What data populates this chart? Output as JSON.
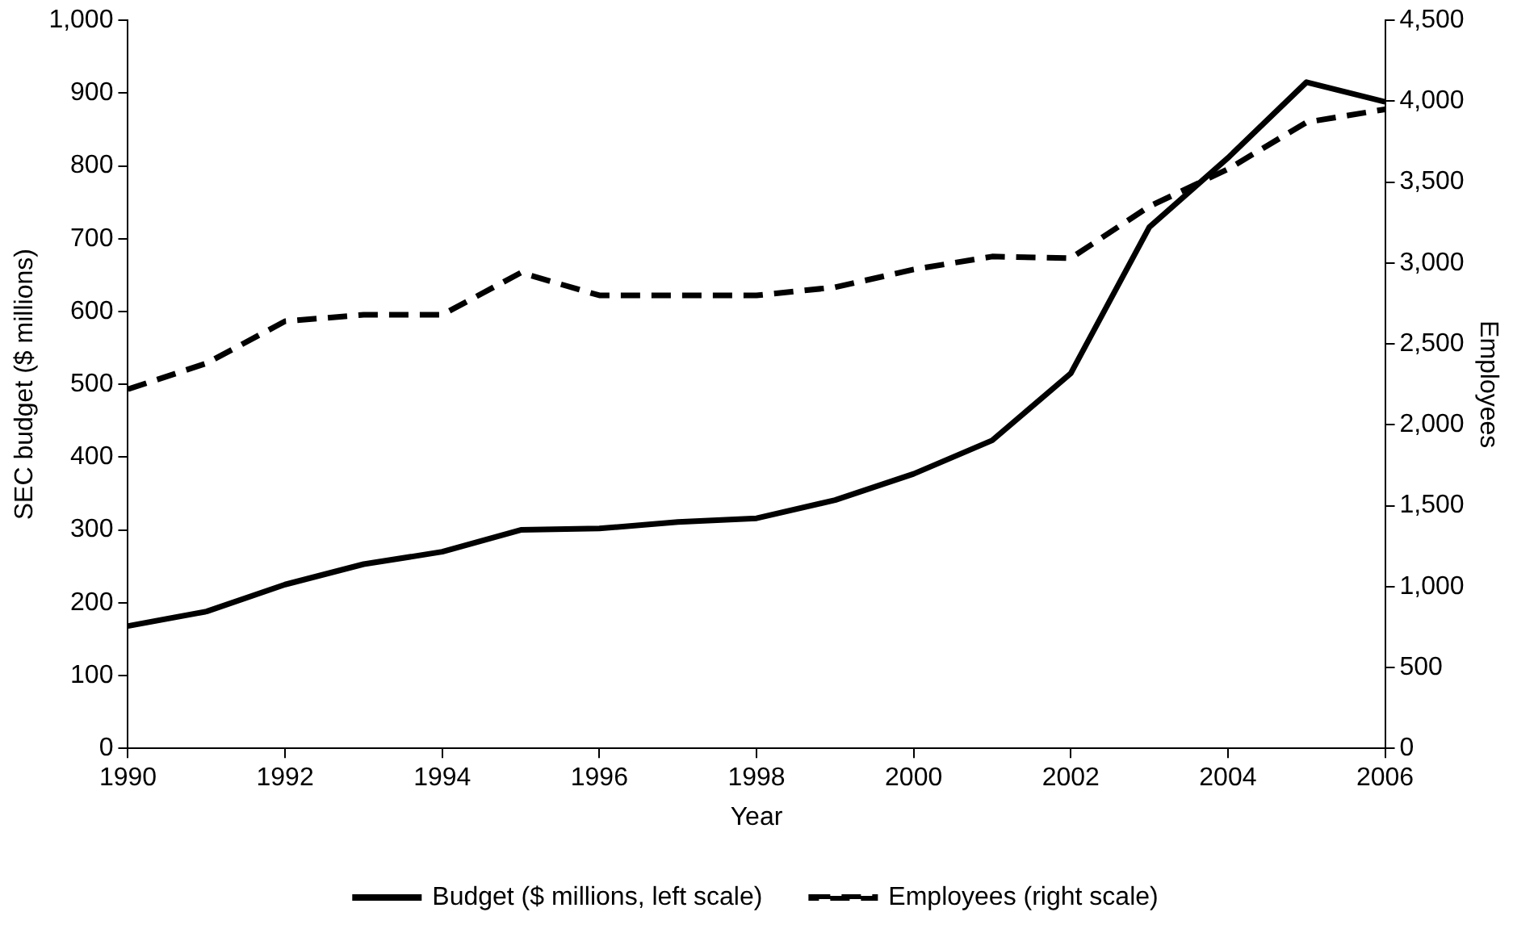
{
  "chart_data": {
    "type": "line",
    "xlabel": "Year",
    "ylabel": "SEC budget ($ millions)",
    "y2label": "Employees",
    "x": [
      1990,
      1991,
      1992,
      1993,
      1994,
      1995,
      1996,
      1997,
      1998,
      1999,
      2000,
      2001,
      2002,
      2003,
      2004,
      2005,
      2006
    ],
    "series": [
      {
        "name": "Budget ($ millions, left scale)",
        "color": "#000000",
        "line_style": "solid",
        "values": [
          168,
          188,
          225,
          253,
          270,
          300,
          302,
          311,
          316,
          341,
          377,
          423,
          515,
          716,
          811,
          915,
          888
        ]
      },
      {
        "name": "Employees (right scale)",
        "color": "#000000",
        "line_style": "dashed",
        "axis": "y2",
        "values": [
          2220,
          2380,
          2640,
          2680,
          2680,
          2940,
          2800,
          2800,
          2800,
          2850,
          2960,
          3040,
          3030,
          3350,
          3580,
          3870,
          3950
        ]
      }
    ],
    "xlim": [
      1990,
      2006
    ],
    "xticks": [
      1990,
      1992,
      1994,
      1996,
      1998,
      2000,
      2002,
      2004,
      2006
    ],
    "ylim": [
      0,
      1000
    ],
    "yticks": [
      0,
      {
        "value": 100,
        "label": "100"
      },
      200,
      300,
      400,
      500,
      600,
      700,
      800,
      900,
      {
        "value": 1000,
        "label": "1,000"
      }
    ],
    "y2lim": [
      0,
      4500
    ],
    "y2ticks": [
      0,
      500,
      {
        "value": 1000,
        "label": "1,000"
      },
      {
        "value": 1500,
        "label": "1,500"
      },
      {
        "value": 2000,
        "label": "2,000"
      },
      {
        "value": 2500,
        "label": "2,500"
      },
      {
        "value": 3000,
        "label": "3,000"
      },
      {
        "value": 3500,
        "label": "3,500"
      },
      {
        "value": 4000,
        "label": "4,000"
      },
      {
        "value": 4500,
        "label": "4,500"
      }
    ],
    "grid": false,
    "legend": "bottom",
    "marker": "none"
  }
}
